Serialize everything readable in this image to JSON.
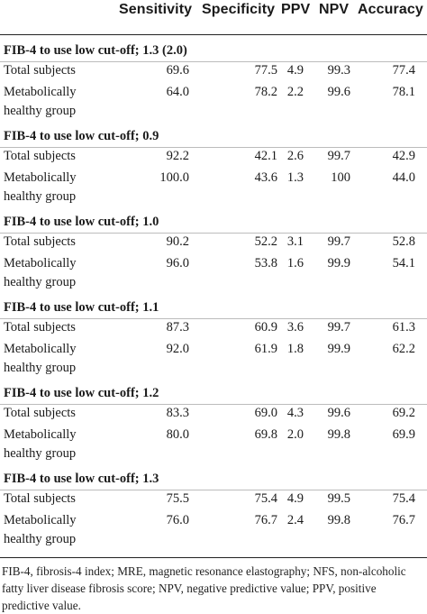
{
  "header": {
    "sensitivity": "Sensitivity",
    "specificity": "Specificity",
    "ppv": "PPV",
    "npv": "NPV",
    "accuracy": "Accuracy"
  },
  "sections": [
    {
      "title": "FIB-4 to use low cut-off; 1.3 (2.0)",
      "rows": [
        {
          "label": "Total subjects",
          "sensitivity": "69.6",
          "specificity": "77.5",
          "ppv": "4.9",
          "npv": "99.3",
          "accuracy": "77.4"
        },
        {
          "label": "Metabolically healthy group",
          "sensitivity": "64.0",
          "specificity": "78.2",
          "ppv": "2.2",
          "npv": "99.6",
          "accuracy": "78.1"
        }
      ]
    },
    {
      "title": "FIB-4 to use low cut-off; 0.9",
      "rows": [
        {
          "label": "Total subjects",
          "sensitivity": "92.2",
          "specificity": "42.1",
          "ppv": "2.6",
          "npv": "99.7",
          "accuracy": "42.9"
        },
        {
          "label": "Metabolically healthy group",
          "sensitivity": "100.0",
          "specificity": "43.6",
          "ppv": "1.3",
          "npv": "100",
          "accuracy": "44.0"
        }
      ]
    },
    {
      "title": "FIB-4 to use low cut-off; 1.0",
      "rows": [
        {
          "label": "Total subjects",
          "sensitivity": "90.2",
          "specificity": "52.2",
          "ppv": "3.1",
          "npv": "99.7",
          "accuracy": "52.8"
        },
        {
          "label": "Metabolically healthy group",
          "sensitivity": "96.0",
          "specificity": "53.8",
          "ppv": "1.6",
          "npv": "99.9",
          "accuracy": "54.1"
        }
      ]
    },
    {
      "title": "FIB-4 to use low cut-off; 1.1",
      "rows": [
        {
          "label": "Total subjects",
          "sensitivity": "87.3",
          "specificity": "60.9",
          "ppv": "3.6",
          "npv": "99.7",
          "accuracy": "61.3"
        },
        {
          "label": "Metabolically healthy group",
          "sensitivity": "92.0",
          "specificity": "61.9",
          "ppv": "1.8",
          "npv": "99.9",
          "accuracy": "62.2"
        }
      ]
    },
    {
      "title": "FIB-4 to use low cut-off; 1.2",
      "rows": [
        {
          "label": "Total subjects",
          "sensitivity": "83.3",
          "specificity": "69.0",
          "ppv": "4.3",
          "npv": "99.6",
          "accuracy": "69.2"
        },
        {
          "label": "Metabolically healthy group",
          "sensitivity": "80.0",
          "specificity": "69.8",
          "ppv": "2.0",
          "npv": "99.8",
          "accuracy": "69.9"
        }
      ]
    },
    {
      "title": "FIB-4 to use low cut-off; 1.3",
      "rows": [
        {
          "label": "Total subjects",
          "sensitivity": "75.5",
          "specificity": "75.4",
          "ppv": "4.9",
          "npv": "99.5",
          "accuracy": "75.4"
        },
        {
          "label": "Metabolically healthy group",
          "sensitivity": "76.0",
          "specificity": "76.7",
          "ppv": "2.4",
          "npv": "99.8",
          "accuracy": "76.7"
        }
      ]
    }
  ],
  "footnote": "FIB-4, fibrosis-4 index; MRE, magnetic resonance elastography; NFS, non-alcoholic fatty liver disease fibrosis score; NPV, negative predictive value; PPV, positive predictive value."
}
